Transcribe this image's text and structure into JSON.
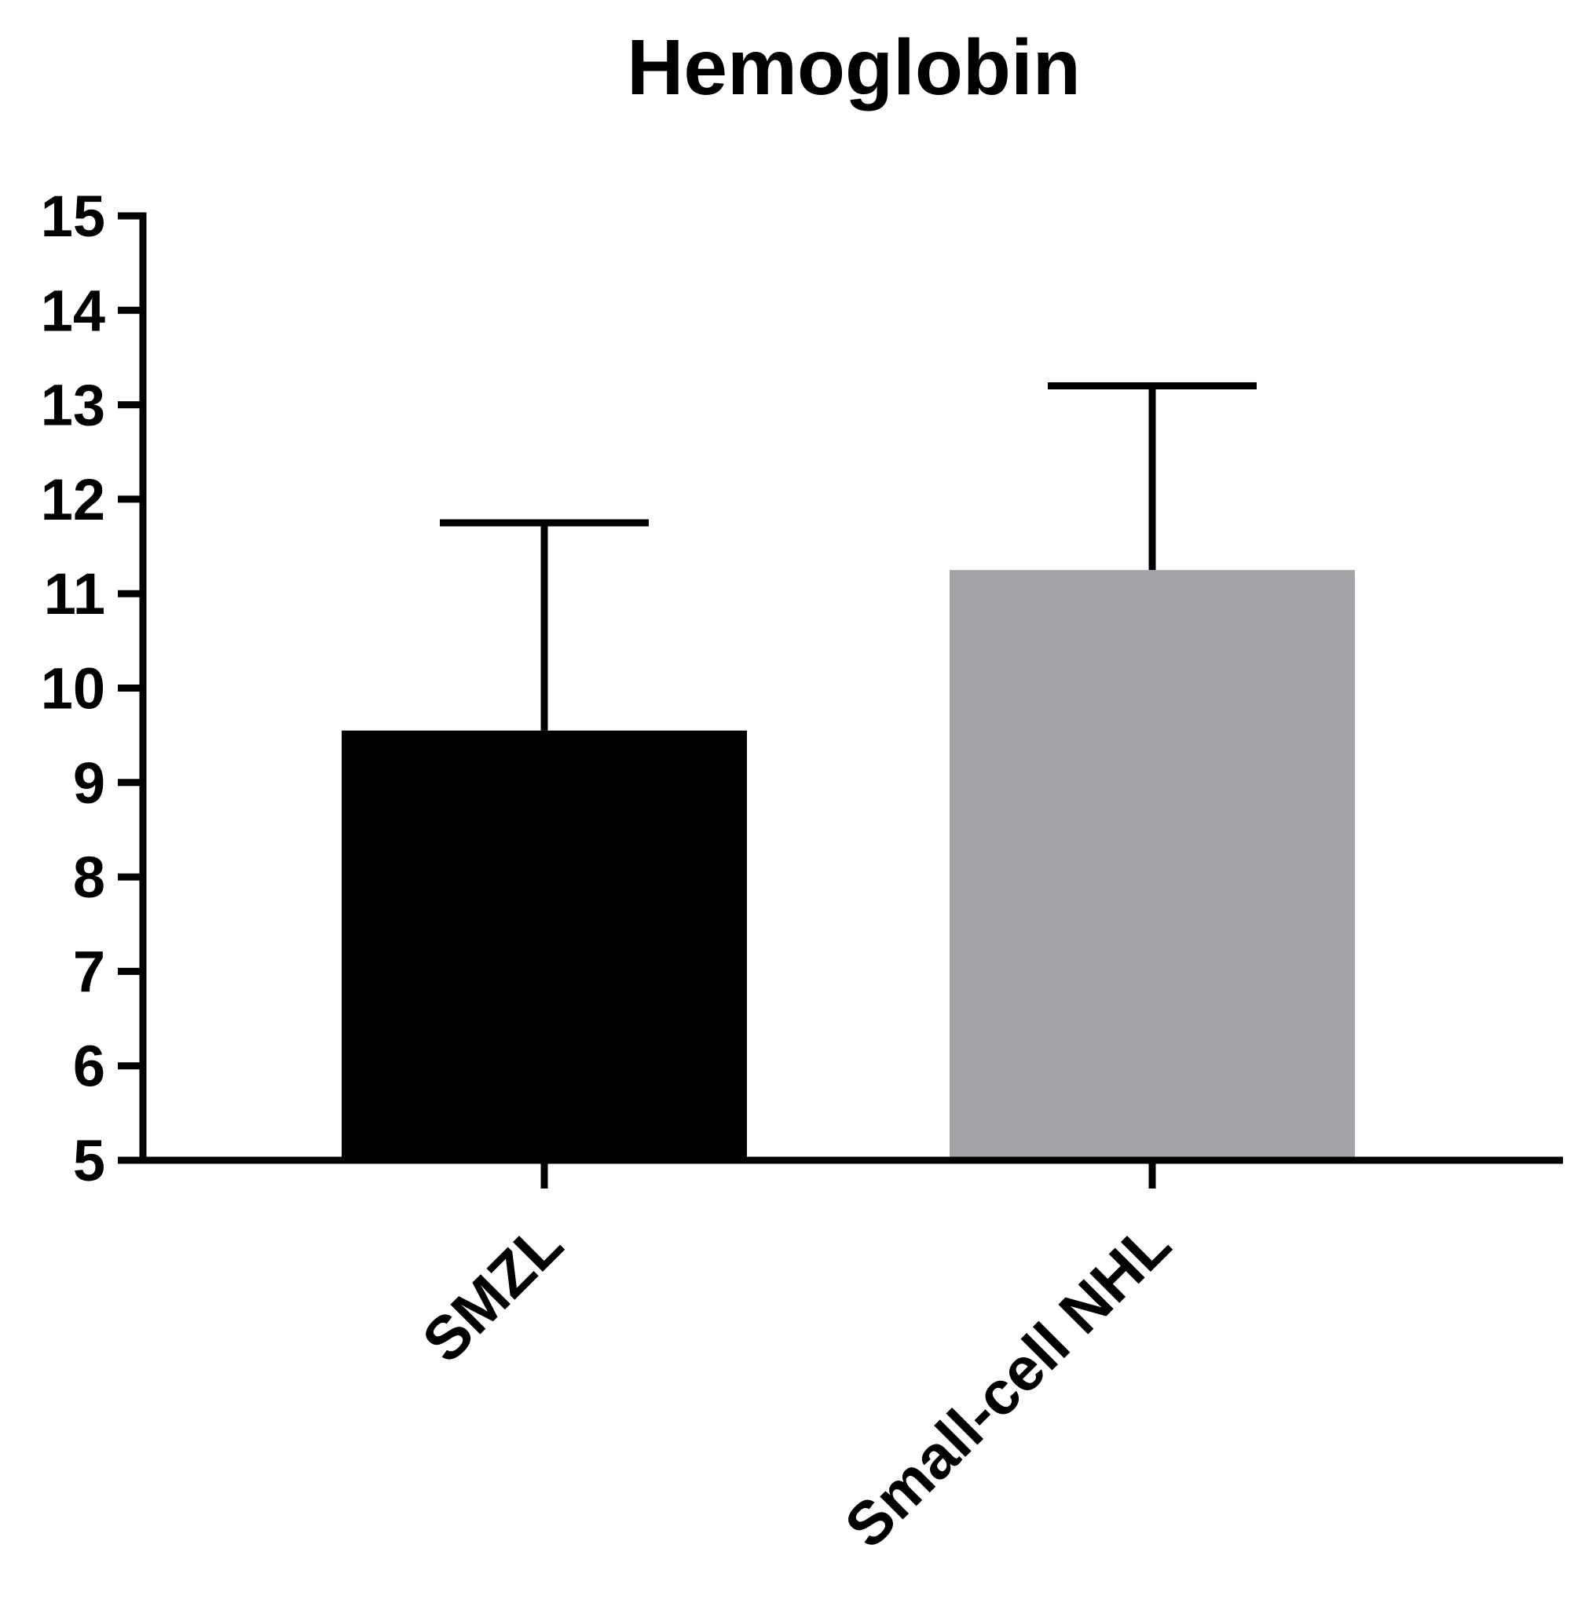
{
  "chart_data": {
    "type": "bar",
    "title": "Hemoglobin",
    "xlabel": "",
    "ylabel": "",
    "ylim": [
      5,
      15
    ],
    "yticks": [
      "5",
      "6",
      "7",
      "8",
      "9",
      "10",
      "11",
      "12",
      "13",
      "14",
      "15"
    ],
    "categories": [
      "SMZL",
      "Small-cell NHL"
    ],
    "values": [
      9.55,
      11.25
    ],
    "error_upper": [
      11.75,
      13.2
    ],
    "colors": [
      "#000000",
      "#a3a4a7"
    ],
    "grid": false,
    "legend": "none"
  }
}
